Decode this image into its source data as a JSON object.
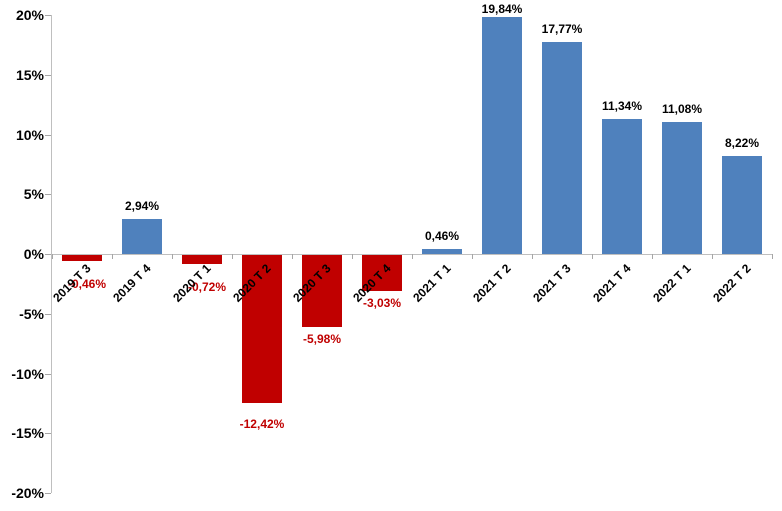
{
  "chart_data": {
    "type": "bar",
    "title": "",
    "xlabel": "",
    "ylabel": "",
    "categories": [
      "2019 T 3",
      "2019 T 4",
      "2020 T 1",
      "2020 T 2",
      "2020 T 3",
      "2020 T 4",
      "2021 T 1",
      "2021 T 2",
      "2021 T 3",
      "2021 T 4",
      "2022 T 1",
      "2022 T 2"
    ],
    "values": [
      -0.46,
      2.94,
      -0.72,
      -12.42,
      -5.98,
      -3.03,
      0.46,
      19.84,
      17.77,
      11.34,
      11.08,
      8.22
    ],
    "value_labels": [
      "-0,46%",
      "2,94%",
      "-0,72%",
      "-12,42%",
      "-5,98%",
      "-3,03%",
      "0,46%",
      "19,84%",
      "17,77%",
      "11,34%",
      "11,08%",
      "8,22%"
    ],
    "y_tick_labels": [
      "20%",
      "15%",
      "10%",
      "5%",
      "0%",
      "-5%",
      "-10%",
      "-15%",
      "-20%"
    ],
    "ylim": [
      -20,
      20
    ],
    "y_tick_step": 5,
    "grid": false,
    "legend": "none",
    "colors": {
      "bar_positive": "#4F81BD",
      "bar_negative": "#C00000",
      "label_positive": "#000000",
      "label_negative": "#C00000",
      "axis": "#BFBFBF",
      "tick": "#A6A6A6",
      "background": "#FFFFFF"
    }
  }
}
